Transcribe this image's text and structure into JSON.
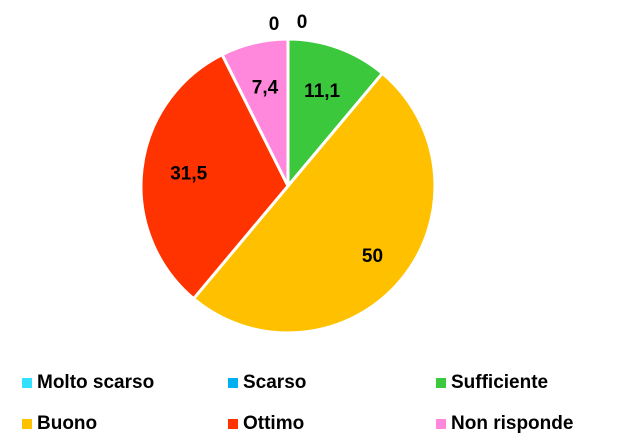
{
  "chart_data": {
    "type": "pie",
    "categories": [
      "Molto scarso",
      "Scarso",
      "Sufficiente",
      "Buono",
      "Ottimo",
      "Non risponde"
    ],
    "values": [
      0,
      0,
      11.1,
      50,
      31.5,
      7.4
    ],
    "value_labels": [
      "0",
      "0",
      "11,1",
      "50",
      "31,5",
      "7,4"
    ],
    "colors": [
      "#33e0ff",
      "#00b0f0",
      "#3cc83c",
      "#ffc000",
      "#ff3300",
      "#ff88dd"
    ]
  }
}
